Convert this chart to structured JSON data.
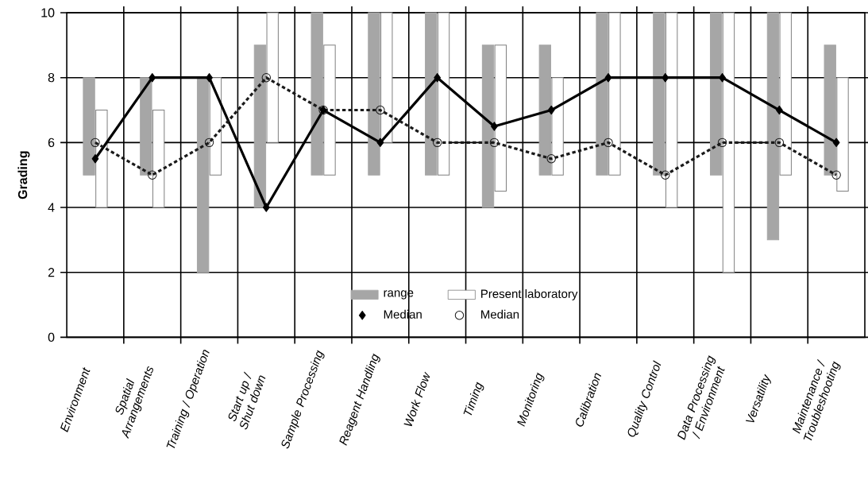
{
  "chart_data": {
    "type": "bar",
    "ylabel": "Grading",
    "categories": [
      "Environment",
      "Spatial Arrangements",
      "Training / Operation",
      "Start up / Shut down",
      "Sample Processing",
      "Reagent Handling",
      "Work Flow",
      "Timing",
      "Monitoring",
      "Calibration",
      "Quality Control",
      "Data Processing / Environment",
      "Versatility",
      "Maintenance / Troubleshooting"
    ],
    "ylim": [
      0,
      10
    ],
    "yticks": [
      0,
      2,
      4,
      6,
      8,
      10
    ],
    "grid": true,
    "legend": "bottom",
    "series": [
      {
        "name": "range",
        "color": "#a6a6a6",
        "base": [
          5,
          5,
          2,
          4,
          5,
          5,
          5,
          4,
          5,
          5,
          5,
          5,
          3,
          5
        ],
        "values": [
          3,
          3,
          6,
          5,
          5,
          5,
          5,
          5,
          4,
          5,
          5,
          5,
          7,
          4
        ]
      },
      {
        "name": "Present laboratory",
        "color": "#ffffff",
        "base": [
          4,
          4,
          5,
          6,
          5,
          6,
          5,
          4.5,
          5,
          5,
          4,
          2,
          5,
          4.5
        ],
        "values": [
          3,
          3,
          3,
          4,
          4,
          4,
          5,
          4.5,
          3,
          5,
          6,
          8,
          5,
          3.5
        ]
      },
      {
        "name": "Median",
        "type": "line",
        "color": "#000000",
        "marker": "diamond",
        "line_style": "solid",
        "values": [
          5.5,
          8,
          8,
          4,
          7,
          6,
          8,
          6.5,
          7,
          8,
          8,
          8,
          7,
          6
        ]
      },
      {
        "name": "Median",
        "type": "line",
        "color": "#1a1a1a",
        "marker": "circle",
        "line_style": "dotted",
        "values": [
          6,
          5,
          6,
          8,
          7,
          7,
          6,
          6,
          5.5,
          6,
          5,
          6,
          6,
          5
        ]
      }
    ]
  }
}
